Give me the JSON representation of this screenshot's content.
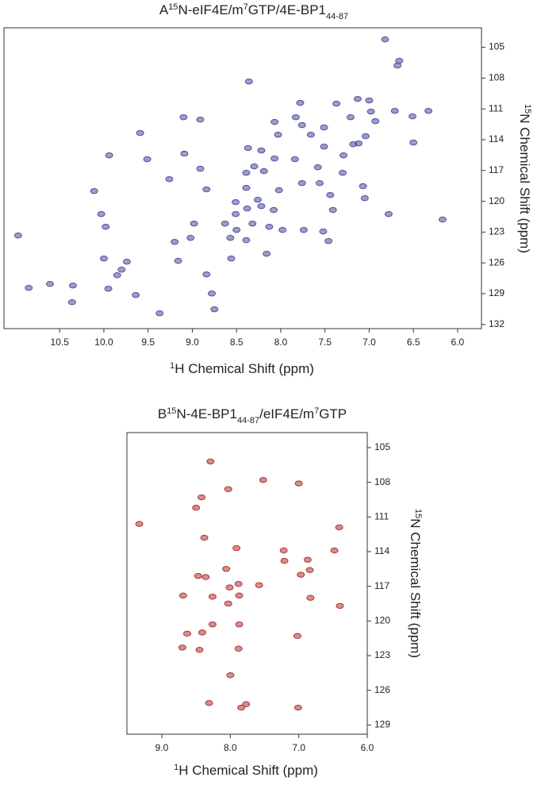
{
  "chart_data": [
    {
      "type": "scatter",
      "panel_label": "A",
      "title_parts": [
        {
          "text": "15",
          "script": "super"
        },
        {
          "text": "N-eIF4E/m",
          "script": "normal"
        },
        {
          "text": "7",
          "script": "super"
        },
        {
          "text": "GTP/4E-BP1",
          "script": "normal"
        },
        {
          "text": "44-87",
          "script": "sub"
        }
      ],
      "xlabel_parts": [
        {
          "text": "1",
          "script": "super"
        },
        {
          "text": "H Chemical Shift (ppm)",
          "script": "normal"
        }
      ],
      "ylabel_parts": [
        {
          "text": "15",
          "script": "super"
        },
        {
          "text": "N Chemical Shift (ppm)",
          "script": "normal"
        }
      ],
      "color": "#4b4f9c",
      "xlim": [
        11.13,
        5.73
      ],
      "ylim": [
        132.4,
        103.1
      ],
      "xticks": [
        10.5,
        {
          "value": 10,
          "label": "10.0"
        },
        9.5,
        {
          "value": 9,
          "label": "9.0"
        },
        8.5,
        {
          "value": 8,
          "label": "8.0"
        },
        7.5,
        {
          "value": 7,
          "label": "7.0"
        },
        6.5,
        {
          "value": 6,
          "label": "6.0"
        }
      ],
      "yticks": [
        105,
        108,
        111,
        114,
        117,
        120,
        123,
        126,
        129,
        132
      ],
      "x": [
        10.97,
        10.85,
        10.36,
        10.61,
        9.95,
        10.35,
        10.03,
        9.98,
        10.0,
        9.8,
        9.74,
        9.59,
        9.51,
        9.94,
        10.11,
        9.85,
        9.64,
        9.37,
        9.1,
        8.91,
        9.09,
        9.26,
        8.91,
        8.84,
        8.98,
        9.02,
        9.2,
        9.16,
        8.84,
        8.78,
        8.63,
        8.56,
        8.51,
        8.51,
        8.5,
        8.39,
        8.39,
        8.38,
        8.39,
        8.32,
        8.36,
        8.37,
        8.26,
        8.3,
        8.22,
        8.16,
        8.02,
        7.98,
        8.03,
        7.76,
        7.78,
        7.83,
        7.58,
        7.56,
        7.44,
        7.41,
        7.29,
        7.51,
        7.66,
        7.74,
        7.52,
        7.51,
        7.37,
        7.3,
        7.18,
        7.07,
        7.04,
        7.0,
        7.13,
        6.71,
        6.68,
        6.66,
        6.93,
        6.5,
        6.51,
        6.98,
        7.21,
        7.46,
        7.76,
        7.84,
        8.07,
        8.07,
        8.19,
        8.13,
        8.75,
        6.33,
        7.12,
        6.17,
        6.82,
        8.22,
        8.57,
        8.08,
        7.05,
        6.78
      ],
      "values": [
        123.33,
        128.43,
        129.83,
        128.05,
        128.51,
        128.2,
        121.24,
        122.48,
        125.57,
        126.66,
        125.88,
        113.35,
        115.9,
        115.52,
        119.0,
        127.2,
        129.13,
        130.91,
        111.81,
        112.04,
        115.36,
        117.84,
        116.83,
        118.84,
        122.17,
        123.56,
        123.95,
        125.8,
        127.12,
        128.98,
        122.17,
        125.57,
        120.08,
        121.24,
        122.79,
        117.22,
        118.69,
        120.7,
        123.79,
        122.17,
        108.33,
        114.82,
        119.85,
        116.6,
        115.05,
        125.11,
        118.92,
        122.79,
        113.51,
        112.58,
        110.41,
        111.81,
        116.68,
        118.23,
        119.39,
        120.85,
        115.52,
        112.81,
        113.51,
        122.79,
        122.94,
        114.67,
        110.49,
        117.22,
        114.44,
        118.53,
        113.66,
        110.18,
        110.03,
        111.19,
        106.78,
        106.31,
        112.19,
        114.28,
        111.73,
        111.26,
        111.81,
        123.87,
        118.23,
        115.9,
        115.83,
        112.27,
        117.06,
        122.48,
        130.52,
        111.19,
        114.36,
        121.78,
        104.23,
        120.47,
        123.56,
        120.85,
        119.7,
        121.24
      ]
    },
    {
      "type": "scatter",
      "panel_label": "B",
      "title_parts": [
        {
          "text": "15",
          "script": "super"
        },
        {
          "text": "N-4E-BP1",
          "script": "normal"
        },
        {
          "text": "44-87",
          "script": "sub"
        },
        {
          "text": "/eIF4E/m",
          "script": "normal"
        },
        {
          "text": "7",
          "script": "super"
        },
        {
          "text": "GTP",
          "script": "normal"
        }
      ],
      "xlabel_parts": [
        {
          "text": "1",
          "script": "super"
        },
        {
          "text": "H Chemical Shift (ppm)",
          "script": "normal"
        }
      ],
      "ylabel_parts": [
        {
          "text": "15",
          "script": "super"
        },
        {
          "text": "N Chemical Shift (ppm)",
          "script": "normal"
        }
      ],
      "color": "#b03232",
      "xlim": [
        9.51,
        6.0
      ],
      "ylim": [
        129.8,
        103.7
      ],
      "xticks": [
        {
          "value": 9,
          "label": "9.0"
        },
        {
          "value": 8,
          "label": "8.0"
        },
        {
          "value": 7,
          "label": "7.0"
        },
        {
          "value": 6,
          "label": "6.0"
        }
      ],
      "yticks": [
        105,
        108,
        111,
        114,
        117,
        120,
        123,
        126,
        129
      ],
      "x": [
        8.29,
        7.52,
        7.0,
        8.03,
        8.42,
        8.5,
        9.33,
        6.41,
        8.38,
        7.91,
        7.22,
        7.21,
        6.48,
        6.87,
        6.84,
        6.97,
        8.47,
        8.36,
        8.06,
        7.88,
        7.58,
        8.01,
        8.69,
        8.26,
        7.87,
        6.83,
        8.03,
        6.4,
        8.26,
        7.87,
        8.63,
        8.41,
        7.02,
        8.7,
        8.45,
        7.88,
        8.0,
        8.31,
        7.84,
        7.77,
        7.01
      ],
      "values": [
        106.2,
        107.8,
        108.1,
        108.6,
        109.3,
        110.2,
        111.6,
        111.9,
        112.8,
        113.7,
        113.9,
        114.8,
        113.9,
        114.7,
        115.6,
        116.0,
        116.1,
        116.2,
        115.5,
        116.8,
        116.9,
        117.1,
        117.8,
        117.9,
        117.8,
        118.0,
        118.5,
        118.7,
        120.3,
        120.3,
        121.1,
        121.0,
        121.3,
        122.3,
        122.5,
        122.4,
        124.7,
        127.1,
        127.5,
        127.2,
        127.5
      ]
    }
  ]
}
